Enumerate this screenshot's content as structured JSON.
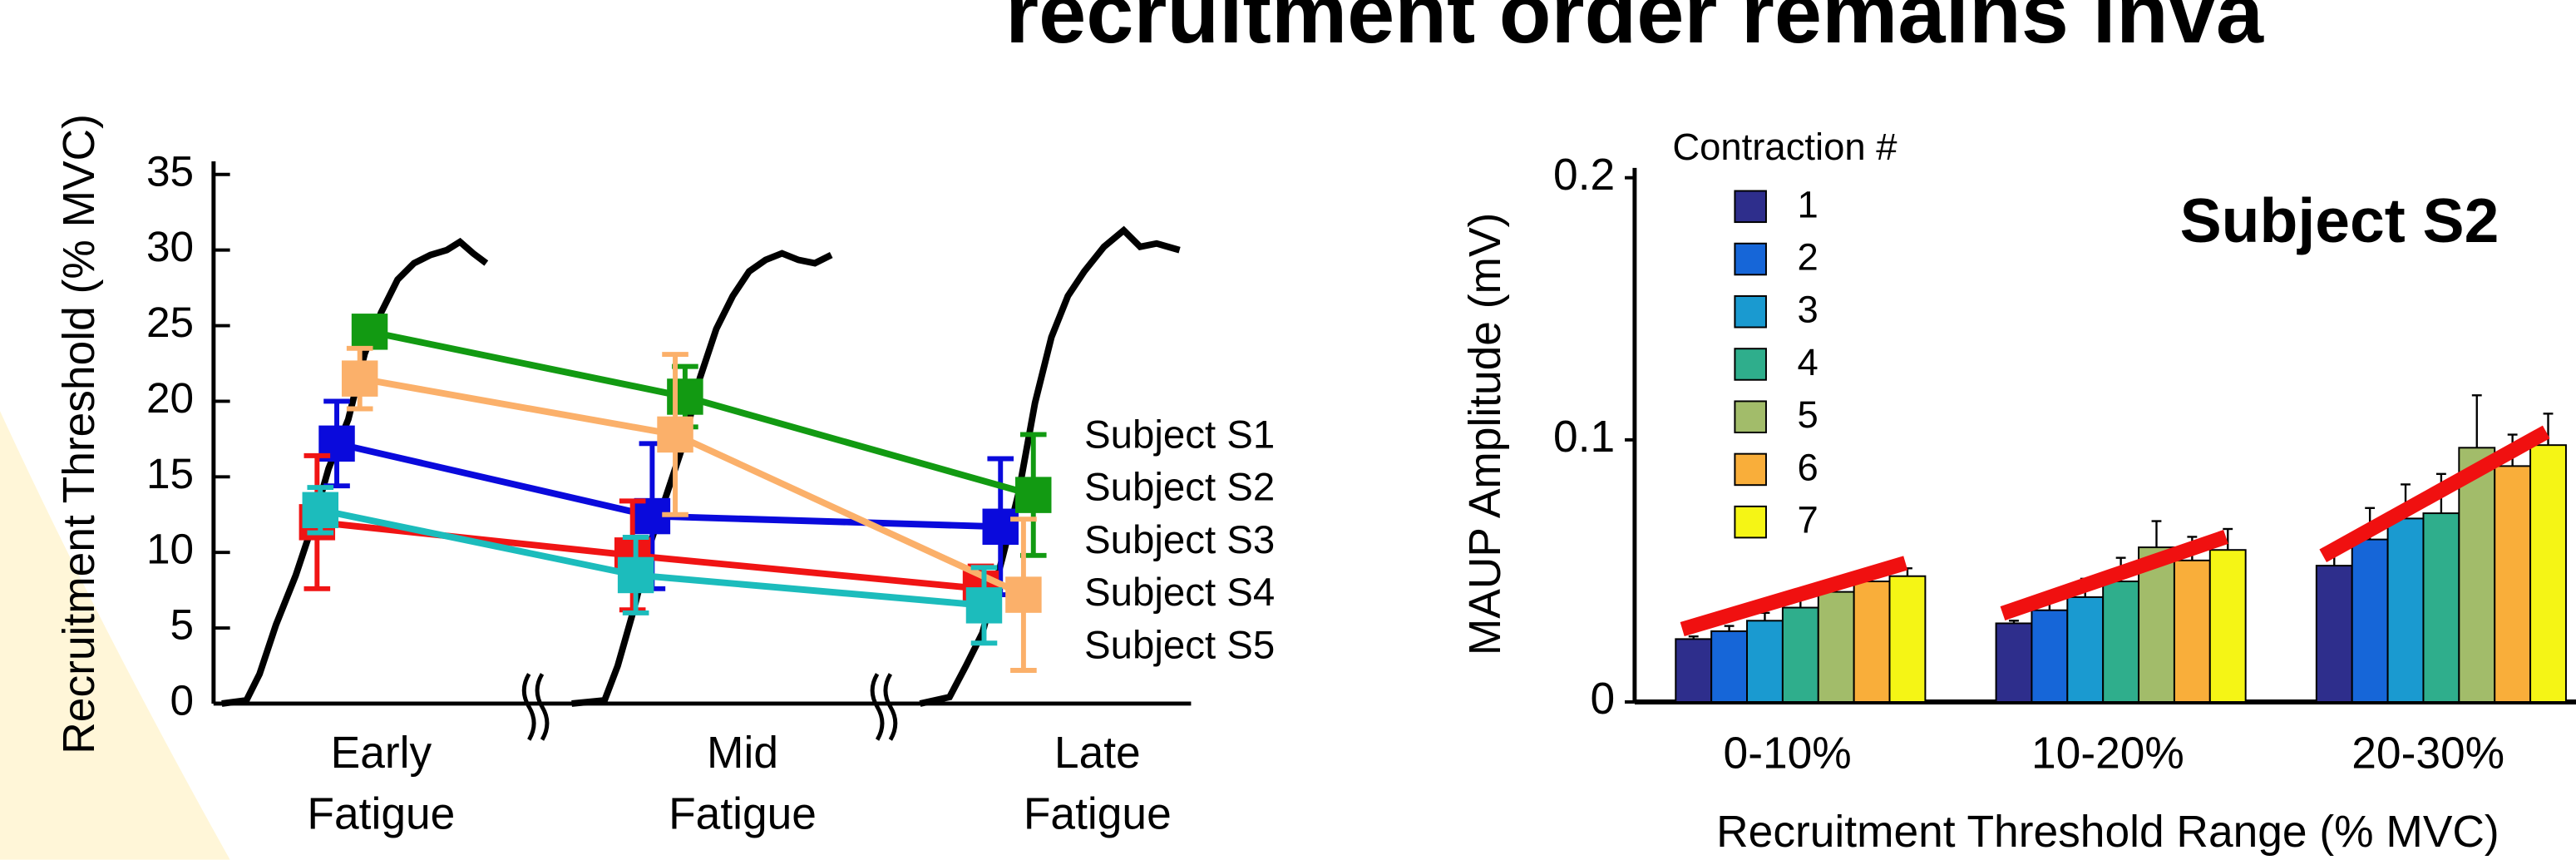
{
  "header": {
    "title": "recruitment order remains inva"
  },
  "chart_data": [
    {
      "type": "line",
      "ylabel": "Recruitment Threshold (% MVC)",
      "categories": [
        "Early Fatigue",
        "Mid Fatigue",
        "Late Fatigue"
      ],
      "ylim": [
        0,
        35
      ],
      "yticks": [
        0,
        5,
        10,
        15,
        20,
        25,
        30,
        35
      ],
      "series": [
        {
          "name": "Subject S1",
          "color": "#0a0adc",
          "legend_color": "#0a0adc",
          "values": [
            17.2,
            12.4,
            11.7
          ],
          "errors": [
            2.8,
            4.8,
            4.5
          ]
        },
        {
          "name": "Subject S2",
          "color": "#129a12",
          "legend_color": "#129a12",
          "values": [
            24.6,
            20.3,
            13.8
          ],
          "errors": [
            1.0,
            2.0,
            4.0
          ]
        },
        {
          "name": "Subject S3",
          "color": "#f01414",
          "legend_color": "#f01414",
          "values": [
            12.0,
            9.8,
            7.6
          ],
          "errors": [
            4.4,
            3.6,
            1.5
          ]
        },
        {
          "name": "Subject S4",
          "color": "#fbb06a",
          "legend_color": "#7a5aa8",
          "values": [
            21.5,
            17.8,
            7.2
          ],
          "errors": [
            2.0,
            5.3,
            5.0
          ]
        },
        {
          "name": "Subject S5",
          "color": "#1cbcbc",
          "legend_color": "#1aaee0",
          "values": [
            12.8,
            8.5,
            6.5
          ],
          "errors": [
            1.5,
            2.5,
            2.5
          ]
        }
      ]
    },
    {
      "type": "bar",
      "title": "Subject S2",
      "legend_title": "Contraction #",
      "ylabel": "MAUP Amplitude (mV)",
      "xlabel": "Recruitment Threshold Range (% MVC)",
      "categories": [
        "0-10%",
        "10-20%",
        "20-30%"
      ],
      "ylim": [
        0,
        0.2
      ],
      "yticks": [
        0,
        0.1,
        0.2
      ],
      "series": [
        {
          "name": "1",
          "color": "#2e2e8c",
          "values": [
            0.024,
            0.03,
            0.052
          ],
          "errors": [
            0.001,
            0.001,
            0.006
          ]
        },
        {
          "name": "2",
          "color": "#1666d8",
          "values": [
            0.027,
            0.035,
            0.062
          ],
          "errors": [
            0.002,
            0.003,
            0.012
          ]
        },
        {
          "name": "3",
          "color": "#1a9ad0",
          "values": [
            0.031,
            0.04,
            0.07
          ],
          "errors": [
            0.003,
            0.007,
            0.013
          ]
        },
        {
          "name": "4",
          "color": "#2fae8c",
          "values": [
            0.036,
            0.046,
            0.072
          ],
          "errors": [
            0.004,
            0.009,
            0.015
          ]
        },
        {
          "name": "5",
          "color": "#a2bc6a",
          "values": [
            0.042,
            0.059,
            0.097
          ],
          "errors": [
            0.005,
            0.01,
            0.02
          ]
        },
        {
          "name": "6",
          "color": "#f9ae3a",
          "values": [
            0.046,
            0.054,
            0.09
          ],
          "errors": [
            0.003,
            0.009,
            0.012
          ]
        },
        {
          "name": "7",
          "color": "#f5f515",
          "values": [
            0.048,
            0.058,
            0.098
          ],
          "errors": [
            0.003,
            0.008,
            0.012
          ]
        }
      ]
    }
  ]
}
